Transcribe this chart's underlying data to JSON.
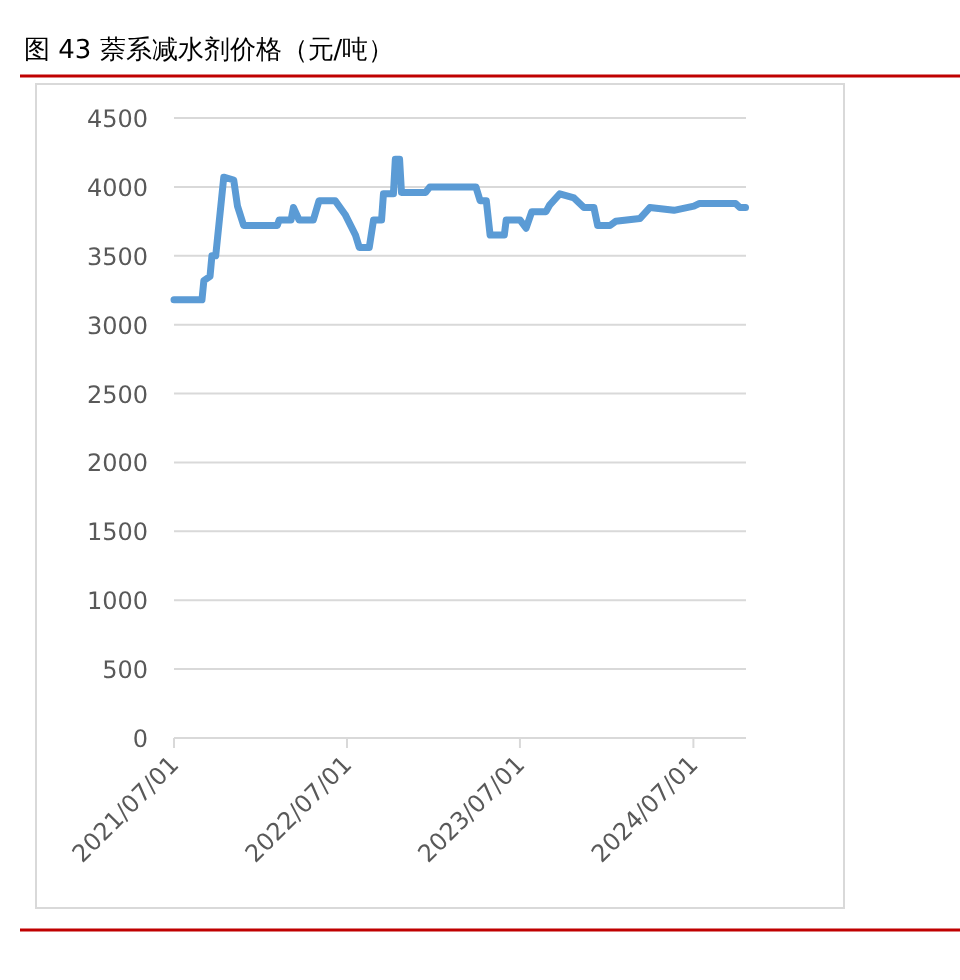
{
  "chart_data": {
    "type": "line",
    "title": "图 43 萘系减水剂价格（元/吨）",
    "x": [
      "2021-07-01",
      "2021-08-29",
      "2021-09-02",
      "2021-09-15",
      "2021-09-19",
      "2021-09-27",
      "2021-10-14",
      "2021-11-04",
      "2021-11-12",
      "2021-11-25",
      "2022-02-04",
      "2022-02-08",
      "2022-03-05",
      "2022-03-10",
      "2022-03-22",
      "2022-04-21",
      "2022-05-03",
      "2022-06-06",
      "2022-06-27",
      "2022-07-19",
      "2022-07-27",
      "2022-08-17",
      "2022-08-26",
      "2022-09-12",
      "2022-09-16",
      "2022-10-07",
      "2022-10-11",
      "2022-10-20",
      "2022-10-24",
      "2022-12-14",
      "2022-12-23",
      "2023-03-30",
      "2023-04-08",
      "2023-04-21",
      "2023-04-29",
      "2023-05-29",
      "2023-06-02",
      "2023-07-01",
      "2023-07-14",
      "2023-07-26",
      "2023-08-25",
      "2023-09-02",
      "2023-09-23",
      "2023-10-23",
      "2023-11-13",
      "2023-12-04",
      "2023-12-12",
      "2024-01-07",
      "2024-01-19",
      "2024-03-10",
      "2024-03-31",
      "2024-05-21",
      "2024-07-02",
      "2024-07-14",
      "2024-09-28",
      "2024-10-07",
      "2024-10-19"
    ],
    "series": [
      {
        "color": "#5b9bd5",
        "values": [
          3180,
          3180,
          3320,
          3350,
          3500,
          3500,
          4070,
          4050,
          3860,
          3720,
          3720,
          3760,
          3760,
          3850,
          3760,
          3760,
          3900,
          3900,
          3800,
          3650,
          3560,
          3560,
          3760,
          3760,
          3950,
          3950,
          4200,
          4200,
          3960,
          3960,
          4000,
          4000,
          3900,
          3900,
          3650,
          3650,
          3760,
          3760,
          3700,
          3820,
          3820,
          3870,
          3950,
          3920,
          3850,
          3850,
          3720,
          3720,
          3750,
          3770,
          3850,
          3830,
          3860,
          3880,
          3880,
          3850,
          3850
        ]
      }
    ],
    "xlim": [
      "2021-07-01",
      "2024-10-20"
    ],
    "xticks": [
      {
        "value": "2021-07-01",
        "label": "2021/07/01"
      },
      {
        "value": "2022-07-01",
        "label": "2022/07/01"
      },
      {
        "value": "2023-07-01",
        "label": "2023/07/01"
      },
      {
        "value": "2024-07-01",
        "label": "2024/07/01"
      }
    ],
    "ylim": [
      0,
      4500
    ],
    "yticks": [
      0,
      500,
      1000,
      1500,
      2000,
      2500,
      3000,
      3500,
      4000,
      4500
    ],
    "grid": "y",
    "marker": "none",
    "line_style": "solid"
  }
}
